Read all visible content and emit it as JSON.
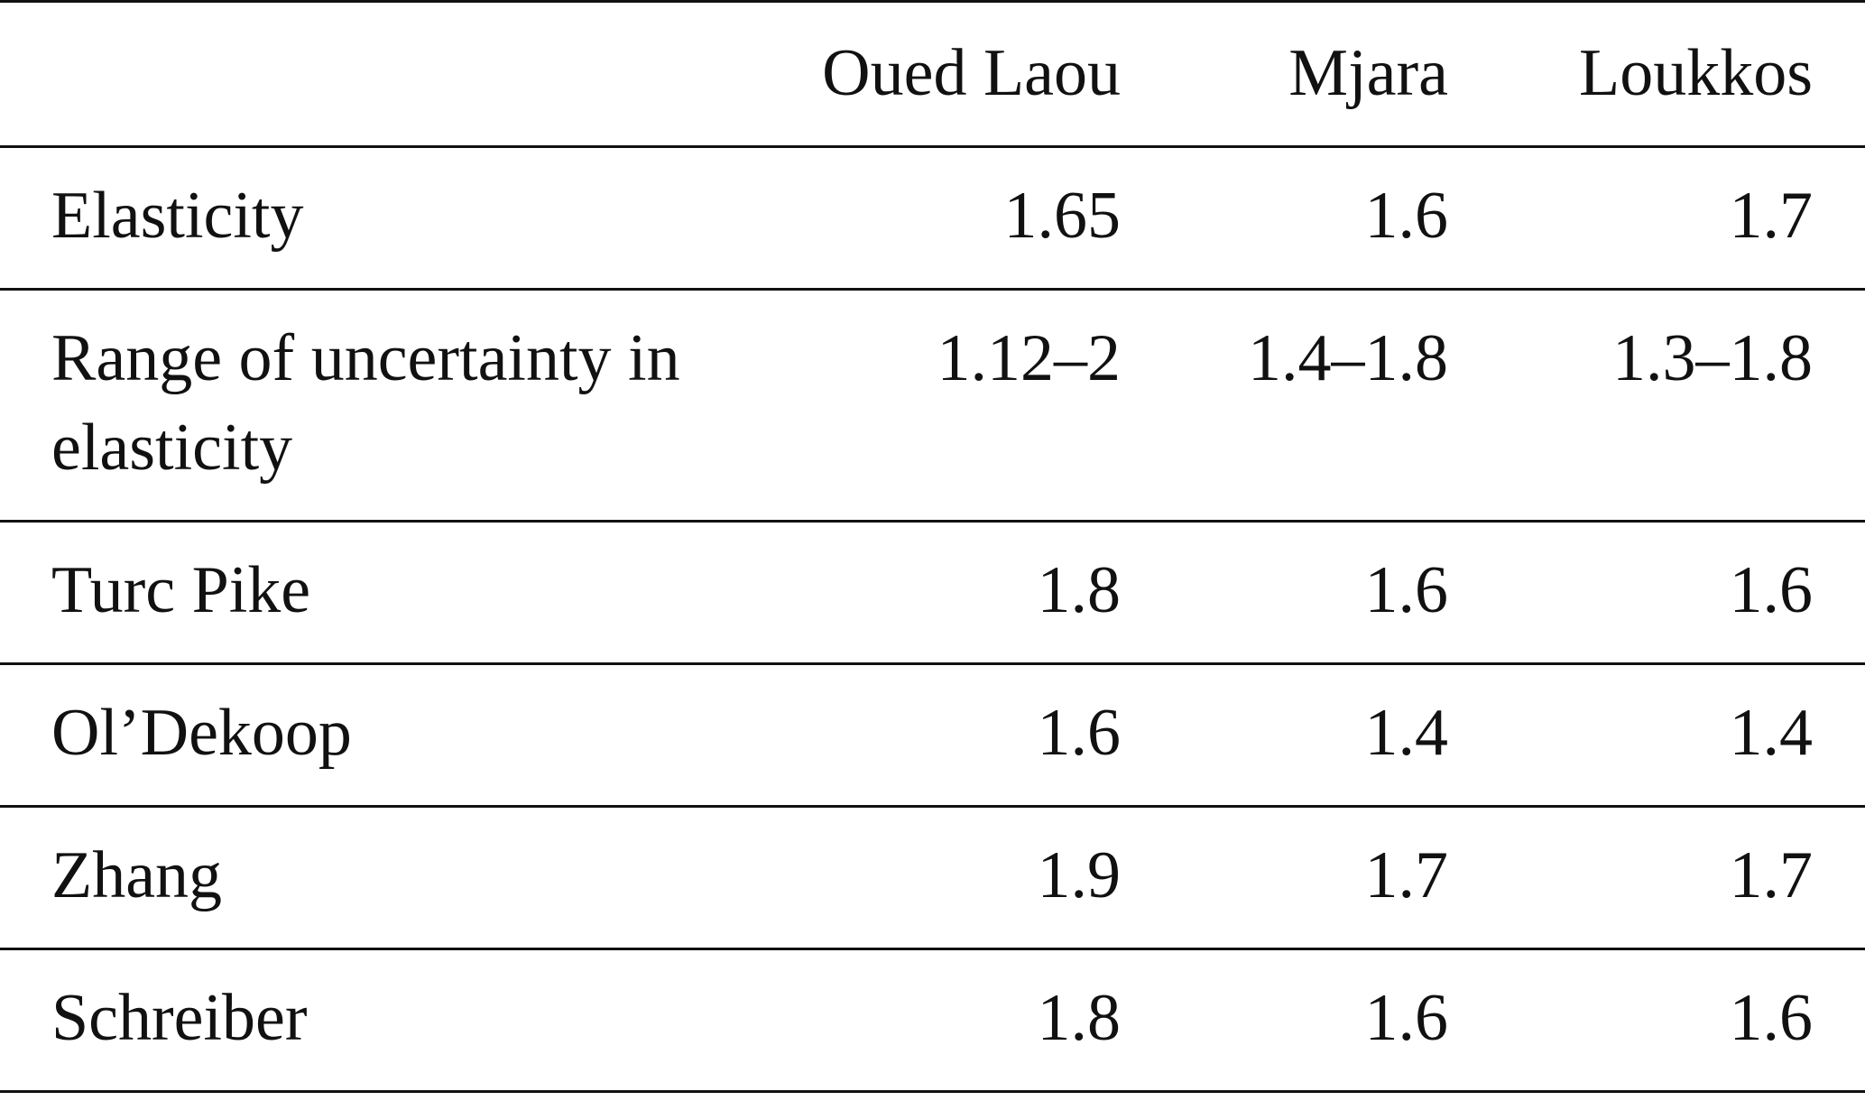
{
  "table": {
    "columns": [
      "Oued Laou",
      "Mjara",
      "Loukkos"
    ],
    "rows": [
      {
        "label": "Elasticity",
        "values": [
          1.65,
          1.6,
          1.7
        ]
      },
      {
        "label": "Range of uncertainty in elasticity",
        "values": [
          "1.12–2",
          "1.4–1.8",
          "1.3–1.8"
        ]
      },
      {
        "label": "Turc Pike",
        "values": [
          1.8,
          1.6,
          1.6
        ]
      },
      {
        "label": "Ol’Dekoop",
        "values": [
          1.6,
          1.4,
          1.4
        ]
      },
      {
        "label": "Zhang",
        "values": [
          1.9,
          1.7,
          1.7
        ]
      },
      {
        "label": "Schreiber",
        "values": [
          1.8,
          1.6,
          1.6
        ]
      }
    ]
  }
}
